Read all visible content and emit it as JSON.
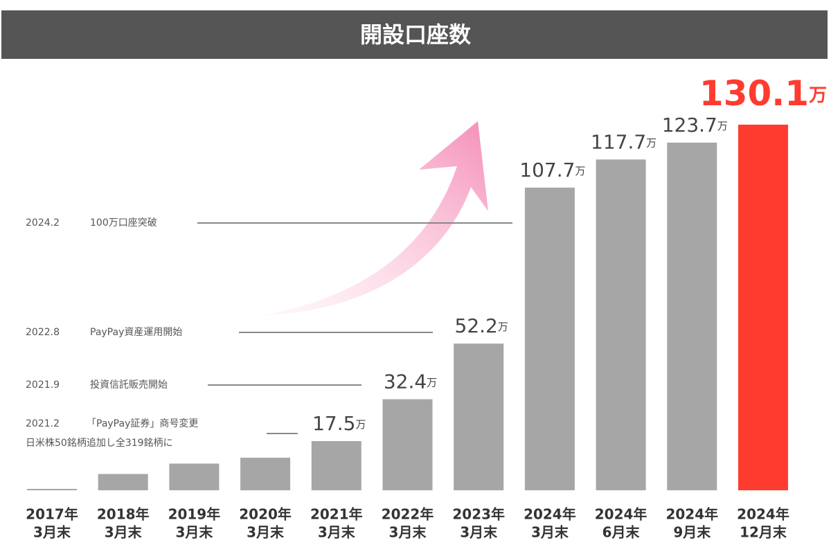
{
  "chart_data": {
    "type": "bar",
    "title": "開設口座数",
    "categories": [
      [
        "2017年",
        "3月末"
      ],
      [
        "2018年",
        "3月末"
      ],
      [
        "2019年",
        "3月末"
      ],
      [
        "2020年",
        "3月末"
      ],
      [
        "2021年",
        "3月末"
      ],
      [
        "2022年",
        "3月末"
      ],
      [
        "2023年",
        "3月末"
      ],
      [
        "2024年",
        "3月末"
      ],
      [
        "2024年",
        "6月末"
      ],
      [
        "2024年",
        "9月末"
      ],
      [
        "2024年",
        "12月末"
      ]
    ],
    "values": [
      0.5,
      5.8,
      9.5,
      11.6,
      17.5,
      32.4,
      52.2,
      107.7,
      117.7,
      123.7,
      130.1
    ],
    "value_labels": [
      null,
      null,
      null,
      null,
      "17.5万",
      "32.4万",
      "52.2万",
      "107.7万",
      "117.7万",
      "123.7万",
      "130.1万"
    ],
    "colors": [
      "#a6a6a6",
      "#a6a6a6",
      "#a6a6a6",
      "#a6a6a6",
      "#a6a6a6",
      "#a6a6a6",
      "#a6a6a6",
      "#a6a6a6",
      "#a6a6a6",
      "#a6a6a6",
      "#ff3b30"
    ],
    "annotations": [
      {
        "date": "2024.2",
        "text": [
          "100万口座突破"
        ]
      },
      {
        "date": "2022.8",
        "text": [
          "PayPay資産運用開始"
        ]
      },
      {
        "date": "2021.9",
        "text": [
          "投資信託販売開始"
        ]
      },
      {
        "date": "2021.2",
        "text": [
          "「PayPay証券」商号変更",
          "日米株50銘柄追加し全319銘柄に"
        ]
      }
    ]
  }
}
